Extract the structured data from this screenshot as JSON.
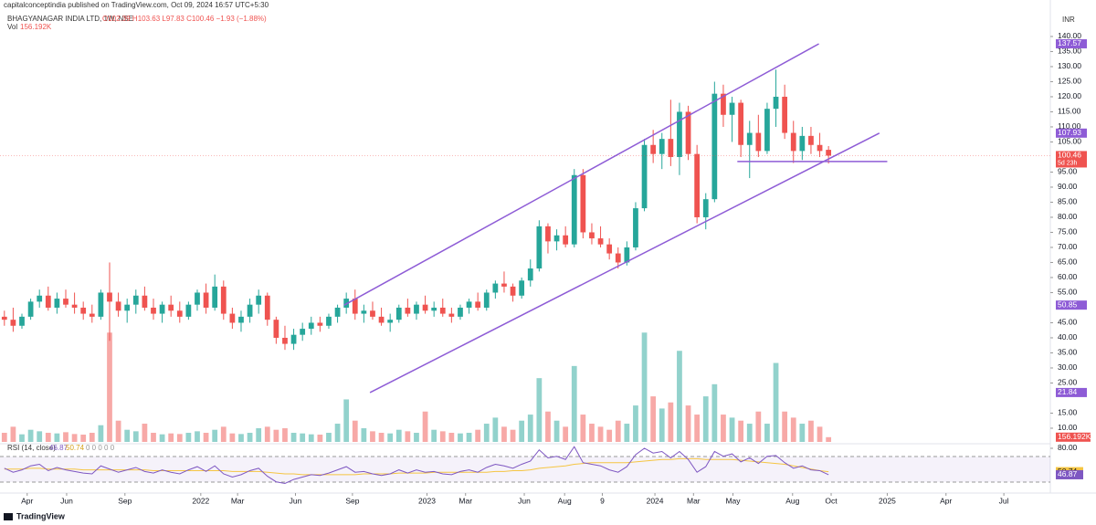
{
  "header": {
    "publisher": "capitalconceptindia published on TradingView.com, Oct 09, 2024 16:57 UTC+5:30",
    "symbol": "BHAGYANAGAR INDIA LTD, 1W, NSE",
    "ohlc_legend": "O102.39 H103.63 L97.83 C100.46 −1.93 (−1.88%)",
    "vol_label": "Vol",
    "rsi_legend": "RSI (14, close)",
    "rsi_extra": "0 0 0 0 0",
    "currency": "INR",
    "countdown": "5d 23h",
    "footer": "TradingView"
  },
  "chart_data": {
    "type": "candlestick",
    "xlim": [
      -0.5,
      119.3
    ],
    "xticks": [
      {
        "value": 2.6,
        "label": "Apr"
      },
      {
        "value": 7.1,
        "label": "Jun"
      },
      {
        "value": 13.75,
        "label": "Sep"
      },
      {
        "value": 22.4,
        "label": "2022"
      },
      {
        "value": 26.6,
        "label": "Mar"
      },
      {
        "value": 33.2,
        "label": "Jun"
      },
      {
        "value": 39.7,
        "label": "Sep"
      },
      {
        "value": 48.2,
        "label": "2023"
      },
      {
        "value": 52.6,
        "label": "Mar"
      },
      {
        "value": 59.3,
        "label": "Jun"
      },
      {
        "value": 63.9,
        "label": "Aug"
      },
      {
        "value": 68.2,
        "label": "9"
      },
      {
        "value": 74.2,
        "label": "2024"
      },
      {
        "value": 78.6,
        "label": "Mar"
      },
      {
        "value": 83.1,
        "label": "May"
      },
      {
        "value": 89.9,
        "label": "Aug"
      },
      {
        "value": 94.3,
        "label": "Oct"
      },
      {
        "value": 100.7,
        "label": "2025"
      },
      {
        "value": 107.4,
        "label": "Apr"
      },
      {
        "value": 114,
        "label": "Jul"
      }
    ],
    "ylim": [
      5.45,
      141.5
    ],
    "yticks": [
      {
        "value": 140,
        "label": "140.00"
      },
      {
        "value": 135,
        "label": "135.00"
      },
      {
        "value": 130,
        "label": "130.00"
      },
      {
        "value": 125,
        "label": "125.00"
      },
      {
        "value": 120,
        "label": "120.00"
      },
      {
        "value": 115,
        "label": "115.00"
      },
      {
        "value": 110,
        "label": "110.00"
      },
      {
        "value": 105,
        "label": "105.00"
      },
      {
        "value": 95,
        "label": "95.00"
      },
      {
        "value": 90,
        "label": "90.00"
      },
      {
        "value": 85,
        "label": "85.00"
      },
      {
        "value": 80,
        "label": "80.00"
      },
      {
        "value": 75,
        "label": "75.00"
      },
      {
        "value": 70,
        "label": "70.00"
      },
      {
        "value": 65,
        "label": "65.00"
      },
      {
        "value": 60,
        "label": "60.00"
      },
      {
        "value": 55,
        "label": "55.00"
      },
      {
        "value": 45,
        "label": "45.00"
      },
      {
        "value": 40,
        "label": "40.00"
      },
      {
        "value": 35,
        "label": "35.00"
      },
      {
        "value": 30,
        "label": "30.00"
      },
      {
        "value": 25,
        "label": "25.00"
      },
      {
        "value": 15,
        "label": "15.00"
      },
      {
        "value": 10,
        "label": "10.00"
      }
    ],
    "up_color": "#26a69a",
    "down_color": "#ef5350",
    "line_color": "#8e5cd6",
    "candles": [
      [
        47,
        49,
        44,
        46
      ],
      [
        46,
        50,
        42,
        44
      ],
      [
        44,
        48,
        43,
        47
      ],
      [
        47,
        53,
        46,
        52
      ],
      [
        52,
        56,
        50,
        54
      ],
      [
        54,
        57,
        49,
        50
      ],
      [
        50,
        55,
        48,
        53
      ],
      [
        53,
        56,
        50,
        51
      ],
      [
        51,
        55,
        48,
        50
      ],
      [
        50,
        52,
        46,
        48
      ],
      [
        48,
        51,
        45,
        47
      ],
      [
        47,
        56,
        46,
        55
      ],
      [
        55,
        65,
        39,
        52
      ],
      [
        52,
        55,
        47,
        49
      ],
      [
        49,
        53,
        45,
        51
      ],
      [
        51,
        56,
        48,
        54
      ],
      [
        54,
        57,
        49,
        50
      ],
      [
        50,
        53,
        46,
        48
      ],
      [
        48,
        52,
        45,
        51
      ],
      [
        51,
        54,
        47,
        49
      ],
      [
        49,
        52,
        45,
        47
      ],
      [
        47,
        52,
        46,
        51
      ],
      [
        51,
        56,
        49,
        55
      ],
      [
        55,
        58,
        48,
        50
      ],
      [
        50,
        61,
        49,
        57
      ],
      [
        57,
        59,
        46,
        48
      ],
      [
        48,
        50,
        43,
        45
      ],
      [
        45,
        49,
        42,
        47
      ],
      [
        47,
        53,
        45,
        51
      ],
      [
        51,
        56,
        48,
        54
      ],
      [
        54,
        55,
        44,
        46
      ],
      [
        46,
        47,
        38,
        40
      ],
      [
        40,
        44,
        36,
        38
      ],
      [
        38,
        43,
        36,
        41
      ],
      [
        41,
        45,
        39,
        43
      ],
      [
        43,
        47,
        41,
        45
      ],
      [
        45,
        47,
        42,
        44
      ],
      [
        44,
        48,
        43,
        47
      ],
      [
        47,
        51,
        45,
        50
      ],
      [
        50,
        55,
        48,
        53
      ],
      [
        53,
        56,
        46,
        48
      ],
      [
        48,
        51,
        45,
        49
      ],
      [
        49,
        52,
        46,
        47
      ],
      [
        47,
        50,
        44,
        45
      ],
      [
        45,
        48,
        42,
        46
      ],
      [
        46,
        51,
        45,
        50
      ],
      [
        50,
        53,
        47,
        48
      ],
      [
        48,
        52,
        46,
        51
      ],
      [
        51,
        54,
        48,
        49
      ],
      [
        49,
        52,
        47,
        50
      ],
      [
        50,
        53,
        47,
        48
      ],
      [
        48,
        50,
        45,
        47
      ],
      [
        47,
        51,
        46,
        50
      ],
      [
        50,
        53,
        48,
        52
      ],
      [
        52,
        55,
        49,
        50
      ],
      [
        50,
        56,
        49,
        55
      ],
      [
        55,
        59,
        53,
        58
      ],
      [
        58,
        62,
        55,
        57
      ],
      [
        57,
        58,
        52,
        54
      ],
      [
        54,
        60,
        53,
        59
      ],
      [
        59,
        66,
        57,
        63
      ],
      [
        63,
        79,
        62,
        77
      ],
      [
        77,
        78,
        68,
        72
      ],
      [
        72,
        76,
        69,
        74
      ],
      [
        74,
        77,
        70,
        71
      ],
      [
        71,
        96,
        70,
        94
      ],
      [
        94,
        96,
        73,
        75
      ],
      [
        75,
        78,
        71,
        73
      ],
      [
        73,
        77,
        70,
        71
      ],
      [
        71,
        73,
        66,
        68
      ],
      [
        68,
        70,
        63,
        65
      ],
      [
        65,
        72,
        64,
        70
      ],
      [
        70,
        85,
        69,
        83
      ],
      [
        83,
        106,
        82,
        104
      ],
      [
        104,
        109,
        98,
        101
      ],
      [
        101,
        108,
        96,
        106
      ],
      [
        106,
        119,
        97,
        100
      ],
      [
        100,
        118,
        94,
        115
      ],
      [
        115,
        117,
        99,
        101
      ],
      [
        101,
        104,
        78,
        80
      ],
      [
        80,
        88,
        76,
        86
      ],
      [
        86,
        125,
        85,
        121
      ],
      [
        121,
        124,
        110,
        114
      ],
      [
        114,
        120,
        105,
        118
      ],
      [
        118,
        119,
        100,
        104
      ],
      [
        104,
        112,
        93,
        108
      ],
      [
        108,
        114,
        100,
        102
      ],
      [
        102,
        118,
        101,
        116
      ],
      [
        116,
        129,
        110,
        120
      ],
      [
        120,
        124,
        106,
        108
      ],
      [
        108,
        112,
        98,
        102
      ],
      [
        102,
        110,
        99,
        107
      ],
      [
        107,
        110,
        101,
        104
      ],
      [
        104,
        108,
        100,
        102
      ],
      [
        102.39,
        103.63,
        97.83,
        100.46
      ]
    ],
    "volume_lim": [
      0,
      13500000
    ],
    "volumes": [
      300000,
      500000,
      250000,
      400000,
      350000,
      300000,
      280000,
      320000,
      260000,
      240000,
      300000,
      550000,
      3600000,
      700000,
      400000,
      350000,
      600000,
      300000,
      250000,
      280000,
      260000,
      300000,
      350000,
      300000,
      400000,
      500000,
      280000,
      260000,
      300000,
      450000,
      500000,
      400000,
      450000,
      300000,
      280000,
      250000,
      240000,
      300000,
      600000,
      1400000,
      700000,
      450000,
      350000,
      300000,
      280000,
      400000,
      350000,
      300000,
      1000000,
      400000,
      350000,
      300000,
      280000,
      300000,
      400000,
      600000,
      800000,
      500000,
      400000,
      700000,
      900000,
      2100000,
      1000000,
      700000,
      500000,
      2500000,
      900000,
      600000,
      500000,
      400000,
      700000,
      600000,
      1200000,
      3600000,
      1500000,
      1100000,
      1300000,
      3000000,
      1200000,
      900000,
      1500000,
      1900000,
      900000,
      800000,
      700000,
      600000,
      1000000,
      600000,
      2600000,
      1000000,
      800000,
      600000,
      700000,
      500000,
      156192
    ],
    "volume_last_label": "156.192K",
    "lines": [
      {
        "x": [
          38.75,
          92.9
        ],
        "y": [
          50.85,
          137.57
        ]
      },
      {
        "x": [
          41.7,
          99.8
        ],
        "y": [
          21.84,
          107.93
        ]
      },
      {
        "x": [
          83.6,
          100.7
        ],
        "y": [
          98.52,
          98.52
        ]
      }
    ],
    "rsi": {
      "ylim": [
        27.4,
        83.4
      ],
      "yticks": [
        {
          "value": 80,
          "label": "80.00"
        }
      ],
      "color": "#7e57c2",
      "ma_color": "#f5c542",
      "values": [
        55,
        50,
        53,
        58,
        60,
        52,
        56,
        53,
        51,
        49,
        48,
        58,
        54,
        50,
        53,
        56,
        51,
        49,
        53,
        50,
        48,
        53,
        57,
        51,
        58,
        48,
        44,
        47,
        52,
        55,
        45,
        38,
        36,
        41,
        44,
        47,
        46,
        49,
        53,
        57,
        50,
        51,
        48,
        46,
        48,
        53,
        49,
        53,
        50,
        51,
        48,
        47,
        51,
        53,
        50,
        56,
        60,
        58,
        55,
        60,
        64,
        78,
        68,
        70,
        66,
        82,
        62,
        60,
        58,
        53,
        50,
        57,
        72,
        80,
        74,
        76,
        68,
        76,
        66,
        50,
        57,
        76,
        70,
        73,
        63,
        68,
        61,
        70,
        71,
        62,
        55,
        58,
        53,
        52,
        46.87
      ],
      "ma": [
        54,
        54,
        54,
        55,
        55,
        54,
        54,
        54,
        54,
        53,
        53,
        53,
        53,
        53,
        53,
        53,
        53,
        52,
        52,
        52,
        52,
        52,
        52,
        52,
        52,
        52,
        51,
        51,
        51,
        51,
        50,
        49,
        48,
        48,
        47,
        47,
        47,
        47,
        47,
        47,
        47,
        48,
        48,
        48,
        48,
        49,
        49,
        49,
        49,
        50,
        50,
        50,
        50,
        50,
        50,
        50,
        51,
        51,
        52,
        52,
        53,
        55,
        56,
        57,
        58,
        60,
        61,
        62,
        62,
        62,
        62,
        62,
        63,
        64,
        65,
        66,
        66,
        67,
        67,
        67,
        66,
        66,
        66,
        66,
        65,
        64,
        63,
        62,
        61,
        60,
        58,
        56,
        54,
        52,
        50.74
      ]
    }
  }
}
